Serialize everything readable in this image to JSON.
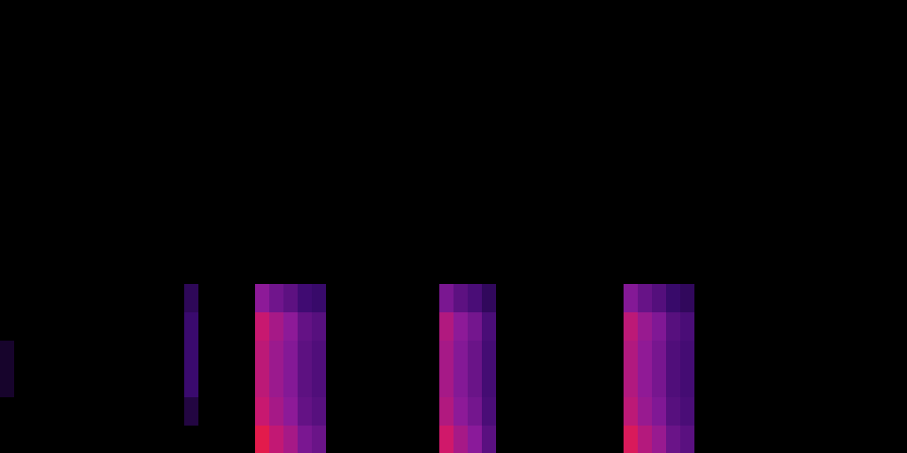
{
  "chart_data": {
    "type": "heatmap",
    "xlim": [
      0,
      64
    ],
    "ylim": [
      0,
      16
    ],
    "tick_labels": false,
    "grid": false,
    "color_range": [
      0,
      1
    ],
    "colors": [
      "#000000",
      "#3a0a6e",
      "#8a1a9a",
      "#d0186a",
      "#ff2020"
    ],
    "cells": [
      [
        0,
        0,
        0,
        0,
        0,
        0,
        0,
        0,
        0,
        0,
        0,
        0,
        0,
        0,
        0,
        0,
        0,
        0,
        0.85,
        0.7,
        0.6,
        0.45,
        0.4,
        0,
        0,
        0,
        0,
        0,
        0,
        0,
        0,
        0.75,
        0.6,
        0.5,
        0.35,
        0,
        0,
        0,
        0,
        0,
        0,
        0,
        0,
        0,
        0.8,
        0.65,
        0.55,
        0.4,
        0.35,
        0,
        0,
        0,
        0,
        0,
        0,
        0,
        0,
        0,
        0,
        0,
        0,
        0,
        0,
        0
      ],
      [
        0,
        0,
        0,
        0,
        0,
        0,
        0,
        0,
        0,
        0,
        0,
        0,
        0,
        0.15,
        0,
        0,
        0,
        0,
        0.72,
        0.6,
        0.51,
        0.38,
        0.34,
        0,
        0,
        0,
        0,
        0,
        0,
        0,
        0,
        0.64,
        0.51,
        0.43,
        0.3,
        0,
        0,
        0,
        0,
        0,
        0,
        0,
        0,
        0,
        0.68,
        0.55,
        0.47,
        0.34,
        0.3,
        0,
        0,
        0,
        0,
        0,
        0,
        0,
        0,
        0,
        0,
        0,
        0,
        0,
        0,
        0
      ],
      [
        0.1,
        0,
        0,
        0,
        0,
        0,
        0,
        0,
        0,
        0,
        0,
        0,
        0,
        0.25,
        0,
        0,
        0,
        0,
        0.68,
        0.56,
        0.48,
        0.36,
        0.32,
        0,
        0,
        0,
        0,
        0,
        0,
        0,
        0,
        0.6,
        0.48,
        0.4,
        0.28,
        0,
        0,
        0,
        0,
        0,
        0,
        0,
        0,
        0,
        0.64,
        0.52,
        0.44,
        0.32,
        0.28,
        0,
        0,
        0,
        0,
        0,
        0,
        0,
        0,
        0,
        0,
        0,
        0,
        0,
        0,
        0
      ],
      [
        0.1,
        0,
        0,
        0,
        0,
        0,
        0,
        0,
        0,
        0,
        0,
        0,
        0,
        0.25,
        0,
        0,
        0,
        0,
        0.68,
        0.56,
        0.48,
        0.36,
        0.32,
        0,
        0,
        0,
        0,
        0,
        0,
        0,
        0,
        0.6,
        0.48,
        0.4,
        0.28,
        0,
        0,
        0,
        0,
        0,
        0,
        0,
        0,
        0,
        0.64,
        0.52,
        0.44,
        0.32,
        0.28,
        0,
        0,
        0,
        0,
        0,
        0,
        0,
        0,
        0,
        0,
        0,
        0,
        0,
        0,
        0
      ],
      [
        0,
        0,
        0,
        0,
        0,
        0,
        0,
        0,
        0,
        0,
        0,
        0,
        0,
        0.25,
        0,
        0,
        0,
        0,
        0.72,
        0.6,
        0.51,
        0.38,
        0.34,
        0,
        0,
        0,
        0,
        0,
        0,
        0,
        0,
        0.64,
        0.51,
        0.43,
        0.3,
        0,
        0,
        0,
        0,
        0,
        0,
        0,
        0,
        0,
        0.68,
        0.55,
        0.47,
        0.34,
        0.3,
        0,
        0,
        0,
        0,
        0,
        0,
        0,
        0,
        0,
        0,
        0,
        0,
        0,
        0,
        0
      ],
      [
        0,
        0,
        0,
        0,
        0,
        0,
        0,
        0,
        0,
        0,
        0,
        0,
        0,
        0.2,
        0,
        0,
        0,
        0,
        0.51,
        0.42,
        0.36,
        0.27,
        0.24,
        0,
        0,
        0,
        0,
        0,
        0,
        0,
        0,
        0.45,
        0.36,
        0.3,
        0.21,
        0,
        0,
        0,
        0,
        0,
        0,
        0,
        0,
        0,
        0.48,
        0.39,
        0.33,
        0.24,
        0.21,
        0,
        0,
        0,
        0,
        0,
        0,
        0,
        0,
        0,
        0,
        0,
        0,
        0,
        0,
        0
      ],
      [
        0,
        0,
        0,
        0,
        0,
        0,
        0,
        0,
        0,
        0,
        0,
        0,
        0,
        0,
        0,
        0,
        0,
        0,
        0,
        0,
        0,
        0,
        0,
        0,
        0,
        0,
        0,
        0,
        0,
        0,
        0,
        0,
        0,
        0,
        0,
        0,
        0,
        0,
        0,
        0,
        0,
        0,
        0,
        0,
        0,
        0,
        0,
        0,
        0,
        0,
        0,
        0,
        0,
        0,
        0,
        0,
        0,
        0,
        0,
        0,
        0,
        0,
        0,
        0
      ],
      [
        0,
        0,
        0,
        0,
        0,
        0,
        0,
        0,
        0,
        0,
        0,
        0,
        0,
        0,
        0,
        0,
        0,
        0,
        0,
        0,
        0,
        0,
        0,
        0,
        0,
        0,
        0,
        0,
        0,
        0,
        0,
        0,
        0,
        0,
        0,
        0,
        0,
        0,
        0,
        0,
        0,
        0,
        0,
        0,
        0,
        0,
        0,
        0,
        0,
        0,
        0,
        0,
        0,
        0,
        0,
        0,
        0,
        0,
        0,
        0,
        0,
        0,
        0,
        0
      ],
      [
        0,
        0,
        0,
        0,
        0,
        0,
        0,
        0,
        0,
        0,
        0,
        0,
        0,
        0,
        0,
        0,
        0,
        0,
        0,
        0,
        0,
        0,
        0,
        0,
        0,
        0,
        0,
        0,
        0,
        0,
        0,
        0,
        0,
        0,
        0,
        0,
        0,
        0,
        0,
        0,
        0,
        0,
        0,
        0,
        0,
        0,
        0,
        0,
        0,
        0,
        0,
        0,
        0,
        0,
        0,
        0,
        0,
        0,
        0,
        0,
        0,
        0,
        0,
        0
      ],
      [
        0,
        0,
        0,
        0,
        0,
        0,
        0,
        0,
        0,
        0,
        0,
        0,
        0,
        0,
        0,
        0,
        0,
        0,
        0,
        0,
        0,
        0,
        0,
        0,
        0,
        0,
        0,
        0,
        0,
        0,
        0,
        0,
        0,
        0,
        0,
        0,
        0,
        0,
        0,
        0,
        0,
        0,
        0,
        0,
        0,
        0,
        0,
        0,
        0,
        0,
        0,
        0,
        0,
        0,
        0,
        0,
        0,
        0,
        0,
        0,
        0,
        0,
        0,
        0
      ],
      [
        0,
        0,
        0,
        0,
        0,
        0,
        0,
        0,
        0,
        0,
        0,
        0,
        0,
        0,
        0,
        0,
        0,
        0,
        0,
        0,
        0,
        0,
        0,
        0,
        0,
        0,
        0,
        0,
        0,
        0,
        0,
        0,
        0,
        0,
        0,
        0,
        0,
        0,
        0,
        0,
        0,
        0,
        0,
        0,
        0,
        0,
        0,
        0,
        0,
        0,
        0,
        0,
        0,
        0,
        0,
        0,
        0,
        0,
        0,
        0,
        0,
        0,
        0,
        0
      ],
      [
        0,
        0,
        0,
        0,
        0,
        0,
        0,
        0,
        0,
        0,
        0,
        0,
        0,
        0,
        0,
        0,
        0,
        0,
        0,
        0,
        0,
        0,
        0,
        0,
        0,
        0,
        0,
        0,
        0,
        0,
        0,
        0,
        0,
        0,
        0,
        0,
        0,
        0,
        0,
        0,
        0,
        0,
        0,
        0,
        0,
        0,
        0,
        0,
        0,
        0,
        0,
        0,
        0,
        0,
        0,
        0,
        0,
        0,
        0,
        0,
        0,
        0,
        0,
        0
      ],
      [
        0,
        0,
        0,
        0,
        0,
        0,
        0,
        0,
        0,
        0,
        0,
        0,
        0,
        0,
        0,
        0,
        0,
        0,
        0,
        0,
        0,
        0,
        0,
        0,
        0,
        0,
        0,
        0,
        0,
        0,
        0,
        0,
        0,
        0,
        0,
        0,
        0,
        0,
        0,
        0,
        0,
        0,
        0,
        0,
        0,
        0,
        0,
        0,
        0,
        0,
        0,
        0,
        0,
        0,
        0,
        0,
        0,
        0,
        0,
        0,
        0,
        0,
        0,
        0
      ],
      [
        0,
        0,
        0,
        0,
        0,
        0,
        0,
        0,
        0,
        0,
        0,
        0,
        0,
        0,
        0,
        0,
        0,
        0,
        0,
        0,
        0,
        0,
        0,
        0,
        0,
        0,
        0,
        0,
        0,
        0,
        0,
        0,
        0,
        0,
        0,
        0,
        0,
        0,
        0,
        0,
        0,
        0,
        0,
        0,
        0,
        0,
        0,
        0,
        0,
        0,
        0,
        0,
        0,
        0,
        0,
        0,
        0,
        0,
        0,
        0,
        0,
        0,
        0,
        0
      ],
      [
        0,
        0,
        0,
        0,
        0,
        0,
        0,
        0,
        0,
        0,
        0,
        0,
        0,
        0,
        0,
        0,
        0,
        0,
        0,
        0,
        0,
        0,
        0,
        0,
        0,
        0,
        0,
        0,
        0,
        0,
        0,
        0,
        0,
        0,
        0,
        0,
        0,
        0,
        0,
        0,
        0,
        0,
        0,
        0,
        0,
        0,
        0,
        0,
        0,
        0,
        0,
        0,
        0,
        0,
        0,
        0,
        0,
        0,
        0,
        0,
        0,
        0,
        0,
        0
      ],
      [
        0,
        0,
        0,
        0,
        0,
        0,
        0,
        0,
        0,
        0,
        0,
        0,
        0,
        0,
        0,
        0,
        0,
        0,
        0,
        0,
        0,
        0,
        0,
        0,
        0,
        0,
        0,
        0,
        0,
        0,
        0,
        0,
        0,
        0,
        0,
        0,
        0,
        0,
        0,
        0,
        0,
        0,
        0,
        0,
        0,
        0,
        0,
        0,
        0,
        0,
        0,
        0,
        0,
        0,
        0,
        0,
        0,
        0,
        0,
        0,
        0,
        0,
        0,
        0
      ]
    ]
  }
}
